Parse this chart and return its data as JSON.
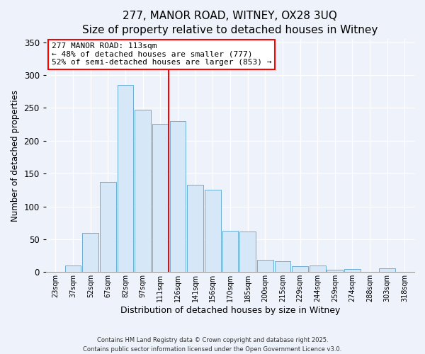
{
  "title": "277, MANOR ROAD, WITNEY, OX28 3UQ",
  "subtitle": "Size of property relative to detached houses in Witney",
  "xlabel": "Distribution of detached houses by size in Witney",
  "ylabel": "Number of detached properties",
  "bar_labels": [
    "23sqm",
    "37sqm",
    "52sqm",
    "67sqm",
    "82sqm",
    "97sqm",
    "111sqm",
    "126sqm",
    "141sqm",
    "156sqm",
    "170sqm",
    "185sqm",
    "200sqm",
    "215sqm",
    "229sqm",
    "244sqm",
    "259sqm",
    "274sqm",
    "288sqm",
    "303sqm",
    "318sqm"
  ],
  "bar_values": [
    0,
    10,
    60,
    137,
    285,
    247,
    226,
    230,
    133,
    125,
    63,
    62,
    19,
    16,
    9,
    10,
    4,
    5,
    0,
    6,
    0
  ],
  "bar_color": "#d6e8f7",
  "bar_edge_color": "#6baed6",
  "vline_color": "red",
  "vline_index": 6,
  "annotation_title": "277 MANOR ROAD: 113sqm",
  "annotation_line1": "← 48% of detached houses are smaller (777)",
  "annotation_line2": "52% of semi-detached houses are larger (853) →",
  "annotation_box_color": "white",
  "annotation_box_edge": "red",
  "ylim": [
    0,
    355
  ],
  "yticks": [
    0,
    50,
    100,
    150,
    200,
    250,
    300,
    350
  ],
  "footer1": "Contains HM Land Registry data © Crown copyright and database right 2025.",
  "footer2": "Contains public sector information licensed under the Open Government Licence v3.0.",
  "bg_color": "#eef2fb",
  "plot_bg_color": "#eef2fb",
  "grid_color": "#ffffff",
  "title_fontsize": 11,
  "subtitle_fontsize": 10
}
